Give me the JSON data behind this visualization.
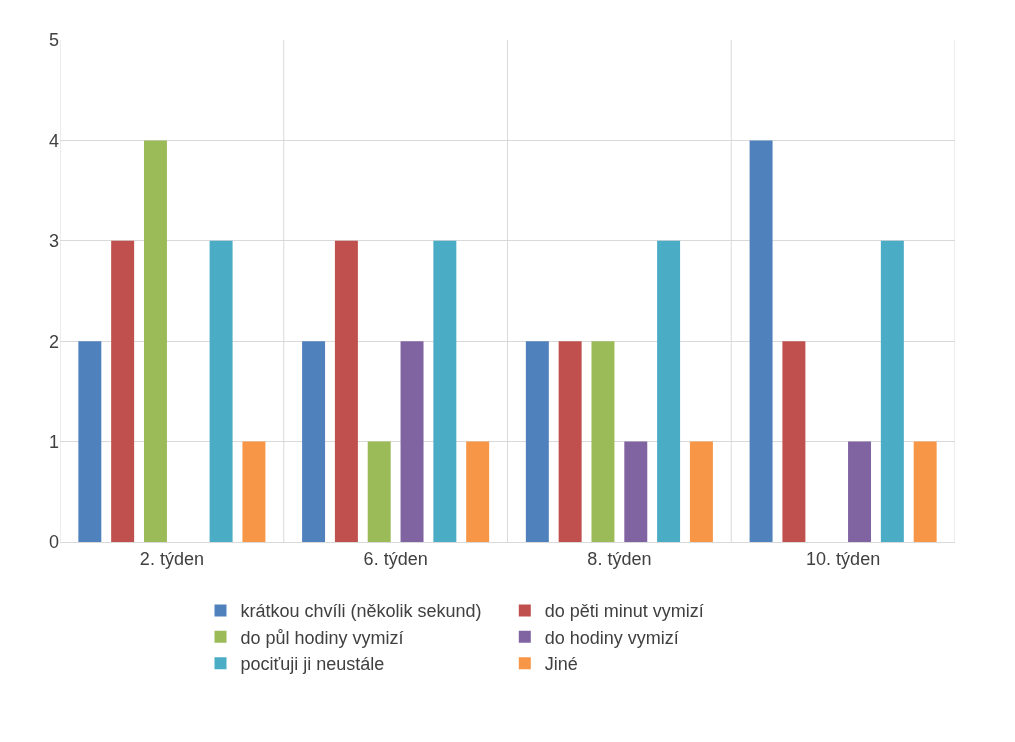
{
  "chart_data": {
    "type": "bar",
    "categories": [
      "2. týden",
      "6. týden",
      "8. týden",
      "10. týden"
    ],
    "series": [
      {
        "name": "krátkou chvíli (několik sekund)",
        "color": "#4f81bd",
        "values": [
          2,
          2,
          2,
          4
        ]
      },
      {
        "name": "do pěti minut vymizí",
        "color": "#c0504d",
        "values": [
          3,
          3,
          2,
          2
        ]
      },
      {
        "name": "do půl hodiny vymizí",
        "color": "#9bbb59",
        "values": [
          4,
          1,
          2,
          0
        ]
      },
      {
        "name": "do hodiny vymizí",
        "color": "#8064a2",
        "values": [
          0,
          2,
          1,
          1
        ]
      },
      {
        "name": "pociťuji ji neustále",
        "color": "#4bacc6",
        "values": [
          3,
          3,
          3,
          3
        ]
      },
      {
        "name": "Jiné",
        "color": "#f79646",
        "values": [
          1,
          1,
          1,
          1
        ]
      }
    ],
    "ylim": [
      0,
      5
    ],
    "yticks": [
      0,
      1,
      2,
      3,
      4,
      5
    ],
    "grid": true,
    "legend": "bottom"
  }
}
